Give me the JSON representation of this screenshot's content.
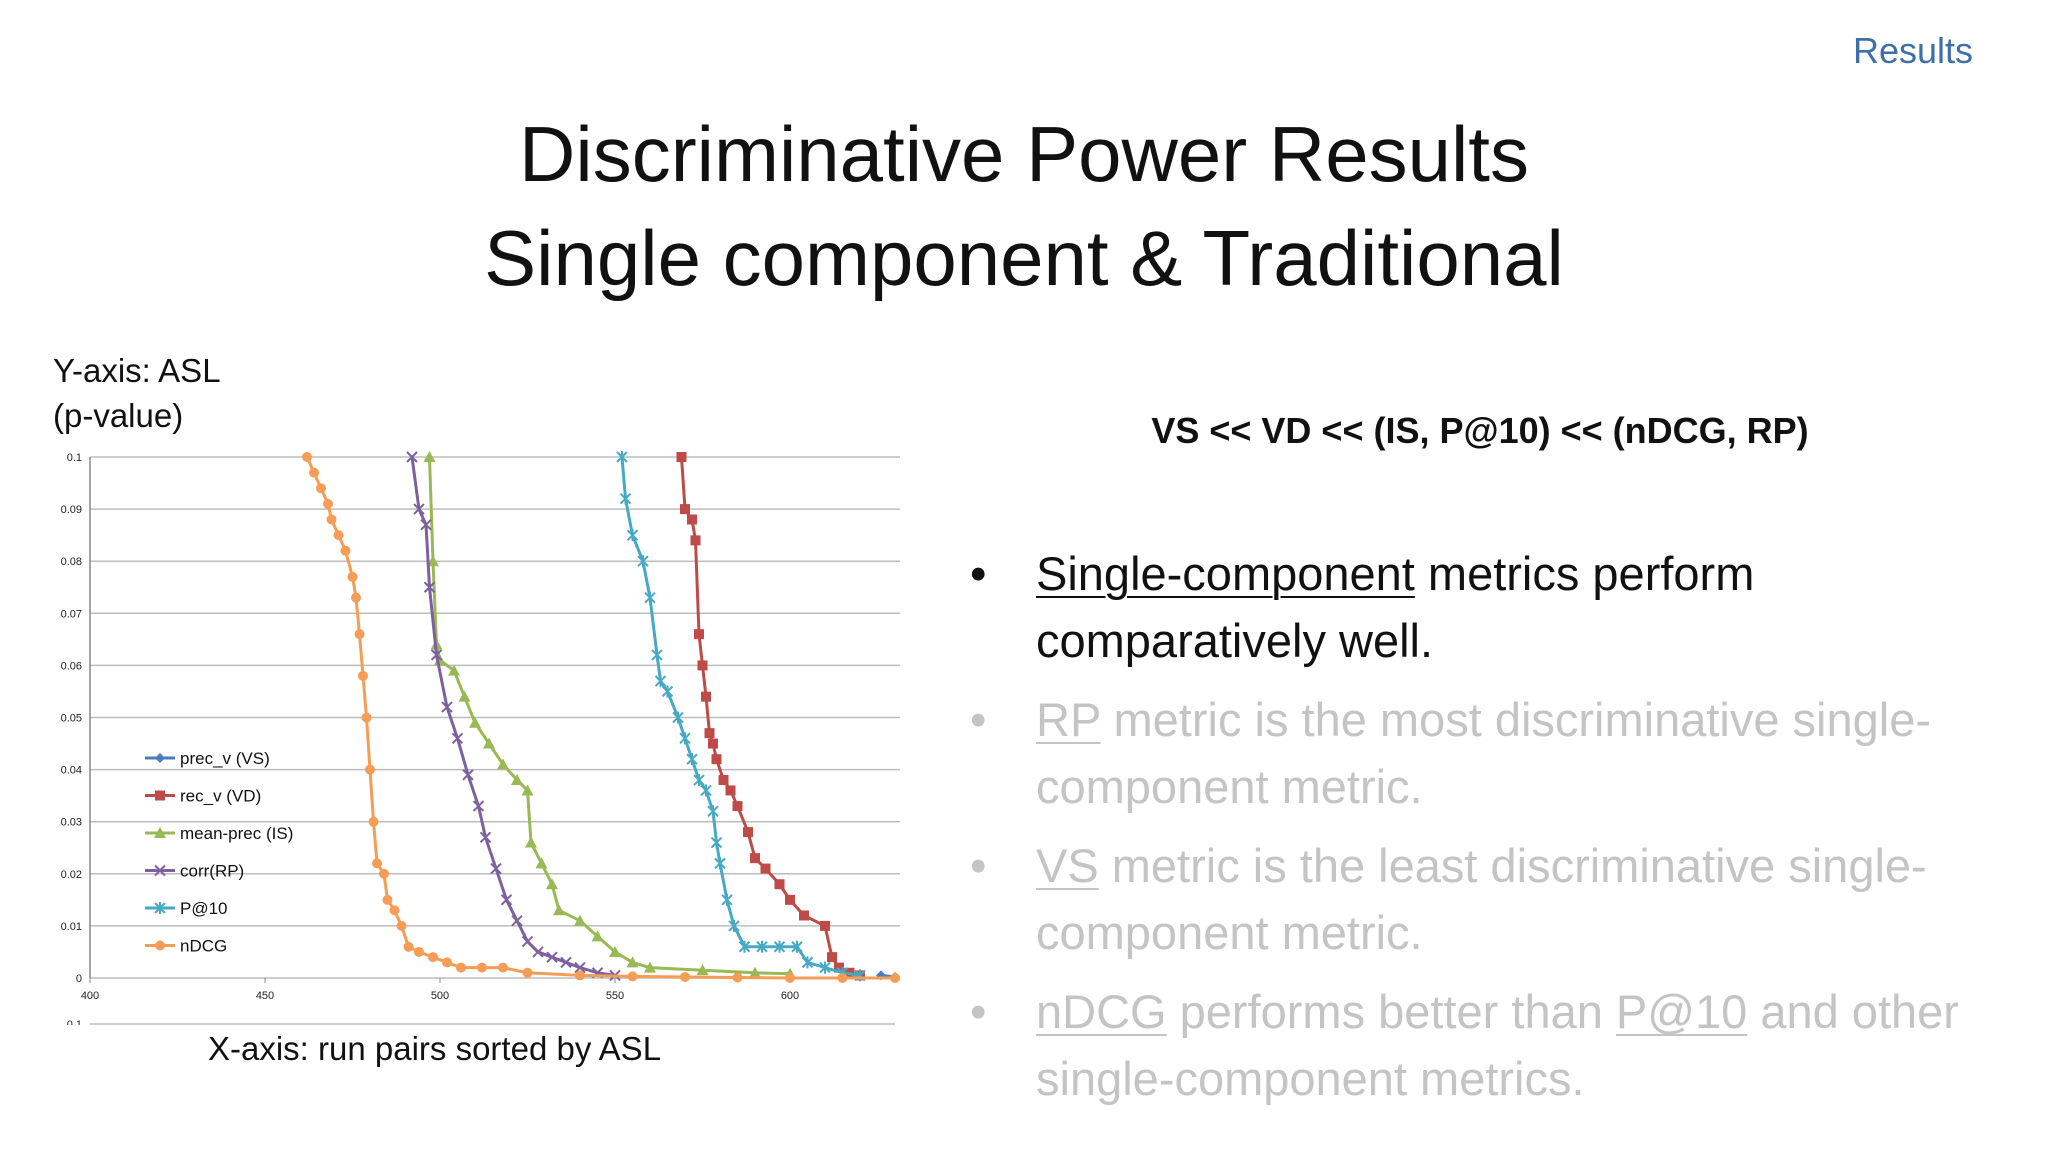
{
  "header": {
    "section": "Results"
  },
  "title": {
    "line1": "Discriminative Power Results",
    "line2": "Single component & Traditional"
  },
  "captions": {
    "y_axis_line1": "Y-axis: ASL",
    "y_axis_line2": "(p-value)",
    "x_axis": "X-axis: run pairs sorted by ASL"
  },
  "ranking": "VS << VD << (IS, P@10) << (nDCG, RP)",
  "bullets": [
    {
      "u": "Single-component",
      "text": " metrics perform comparatively well.",
      "state": "active"
    },
    {
      "u": "RP",
      "text": " metric is the most discriminative single-component metric.",
      "state": "dim"
    },
    {
      "u": "VS",
      "text": " metric is the least discriminative single-component metric.",
      "state": "dim"
    },
    {
      "u": "nDCG",
      "text": " performs better than ",
      "u2": "P@10",
      "text2": " and other single-component metrics.",
      "state": "dim"
    }
  ],
  "colors": {
    "prec_v": "#4a7ebb",
    "rec_v": "#be4b48",
    "mean_prec": "#98b954",
    "corr": "#7d60a0",
    "p10": "#46aac5",
    "ndcg": "#f59d56",
    "grid": "#bdbdbd"
  },
  "chart_data": {
    "type": "line",
    "xlim": [
      400,
      630
    ],
    "ylim": [
      0,
      0.1
    ],
    "x_ticks": [
      "400",
      "450",
      "500",
      "550",
      "600"
    ],
    "y_ticks": [
      "0",
      "0.01",
      "0.02",
      "0.03",
      "0.04",
      "0.05",
      "0.06",
      "0.07",
      "0.08",
      "0.09",
      "0.1"
    ],
    "extra_tick_label": "0.1",
    "grid": true,
    "legend_position": "left-middle",
    "series": [
      {
        "key": "prec_v",
        "name": "prec_v (VS)",
        "marker": "diamond",
        "points": [
          [
            626,
            0.0005
          ],
          [
            630,
            0.0002
          ]
        ]
      },
      {
        "key": "rec_v",
        "name": "rec_v (VD)",
        "marker": "square",
        "points": [
          [
            569,
            0.1
          ],
          [
            570,
            0.09
          ],
          [
            572,
            0.088
          ],
          [
            573,
            0.084
          ],
          [
            574,
            0.066
          ],
          [
            575,
            0.06
          ],
          [
            576,
            0.054
          ],
          [
            577,
            0.047
          ],
          [
            578,
            0.045
          ],
          [
            579,
            0.042
          ],
          [
            581,
            0.038
          ],
          [
            583,
            0.036
          ],
          [
            585,
            0.033
          ],
          [
            588,
            0.028
          ],
          [
            590,
            0.023
          ],
          [
            593,
            0.021
          ],
          [
            597,
            0.018
          ],
          [
            600,
            0.015
          ],
          [
            604,
            0.012
          ],
          [
            610,
            0.01
          ],
          [
            612,
            0.004
          ],
          [
            614,
            0.002
          ],
          [
            617,
            0.001
          ],
          [
            620,
            0.0005
          ]
        ]
      },
      {
        "key": "mean_prec",
        "name": "mean-prec (IS)",
        "marker": "triangle",
        "points": [
          [
            497,
            0.1
          ],
          [
            498,
            0.08
          ],
          [
            499,
            0.064
          ],
          [
            500,
            0.061
          ],
          [
            504,
            0.059
          ],
          [
            507,
            0.054
          ],
          [
            510,
            0.049
          ],
          [
            514,
            0.045
          ],
          [
            518,
            0.041
          ],
          [
            522,
            0.038
          ],
          [
            525,
            0.036
          ],
          [
            526,
            0.026
          ],
          [
            529,
            0.022
          ],
          [
            532,
            0.018
          ],
          [
            534,
            0.013
          ],
          [
            540,
            0.011
          ],
          [
            545,
            0.008
          ],
          [
            550,
            0.005
          ],
          [
            555,
            0.003
          ],
          [
            560,
            0.002
          ],
          [
            575,
            0.0015
          ],
          [
            590,
            0.001
          ],
          [
            600,
            0.0008
          ]
        ]
      },
      {
        "key": "corr",
        "name": "corr(RP)",
        "marker": "x",
        "points": [
          [
            492,
            0.1
          ],
          [
            494,
            0.09
          ],
          [
            496,
            0.087
          ],
          [
            497,
            0.075
          ],
          [
            499,
            0.062
          ],
          [
            502,
            0.052
          ],
          [
            505,
            0.046
          ],
          [
            508,
            0.039
          ],
          [
            511,
            0.033
          ],
          [
            513,
            0.027
          ],
          [
            516,
            0.021
          ],
          [
            519,
            0.015
          ],
          [
            522,
            0.011
          ],
          [
            525,
            0.007
          ],
          [
            528,
            0.005
          ],
          [
            532,
            0.004
          ],
          [
            536,
            0.003
          ],
          [
            540,
            0.002
          ],
          [
            545,
            0.001
          ],
          [
            550,
            0.0005
          ]
        ]
      },
      {
        "key": "p10",
        "name": "P@10",
        "marker": "star",
        "points": [
          [
            552,
            0.1
          ],
          [
            553,
            0.092
          ],
          [
            555,
            0.085
          ],
          [
            558,
            0.08
          ],
          [
            560,
            0.073
          ],
          [
            562,
            0.062
          ],
          [
            563,
            0.057
          ],
          [
            565,
            0.055
          ],
          [
            568,
            0.05
          ],
          [
            570,
            0.046
          ],
          [
            572,
            0.042
          ],
          [
            574,
            0.038
          ],
          [
            576,
            0.036
          ],
          [
            578,
            0.032
          ],
          [
            579,
            0.026
          ],
          [
            580,
            0.022
          ],
          [
            582,
            0.015
          ],
          [
            584,
            0.01
          ],
          [
            587,
            0.006
          ],
          [
            592,
            0.006
          ],
          [
            597,
            0.006
          ],
          [
            602,
            0.006
          ],
          [
            605,
            0.003
          ],
          [
            610,
            0.002
          ],
          [
            615,
            0.001
          ],
          [
            620,
            0.0005
          ]
        ]
      },
      {
        "key": "ndcg",
        "name": "nDCG",
        "marker": "circle",
        "points": [
          [
            462,
            0.1
          ],
          [
            464,
            0.097
          ],
          [
            466,
            0.094
          ],
          [
            468,
            0.091
          ],
          [
            469,
            0.088
          ],
          [
            471,
            0.085
          ],
          [
            473,
            0.082
          ],
          [
            475,
            0.077
          ],
          [
            476,
            0.073
          ],
          [
            477,
            0.066
          ],
          [
            478,
            0.058
          ],
          [
            479,
            0.05
          ],
          [
            480,
            0.04
          ],
          [
            481,
            0.03
          ],
          [
            482,
            0.022
          ],
          [
            484,
            0.02
          ],
          [
            485,
            0.015
          ],
          [
            487,
            0.013
          ],
          [
            489,
            0.01
          ],
          [
            491,
            0.006
          ],
          [
            494,
            0.005
          ],
          [
            498,
            0.004
          ],
          [
            502,
            0.003
          ],
          [
            506,
            0.002
          ],
          [
            512,
            0.002
          ],
          [
            518,
            0.002
          ],
          [
            525,
            0.001
          ],
          [
            540,
            0.0005
          ],
          [
            555,
            0.0003
          ],
          [
            570,
            0.0002
          ],
          [
            585,
            0.0001
          ],
          [
            600,
            0.0
          ],
          [
            615,
            0.0
          ],
          [
            630,
            0.0
          ]
        ]
      }
    ]
  }
}
